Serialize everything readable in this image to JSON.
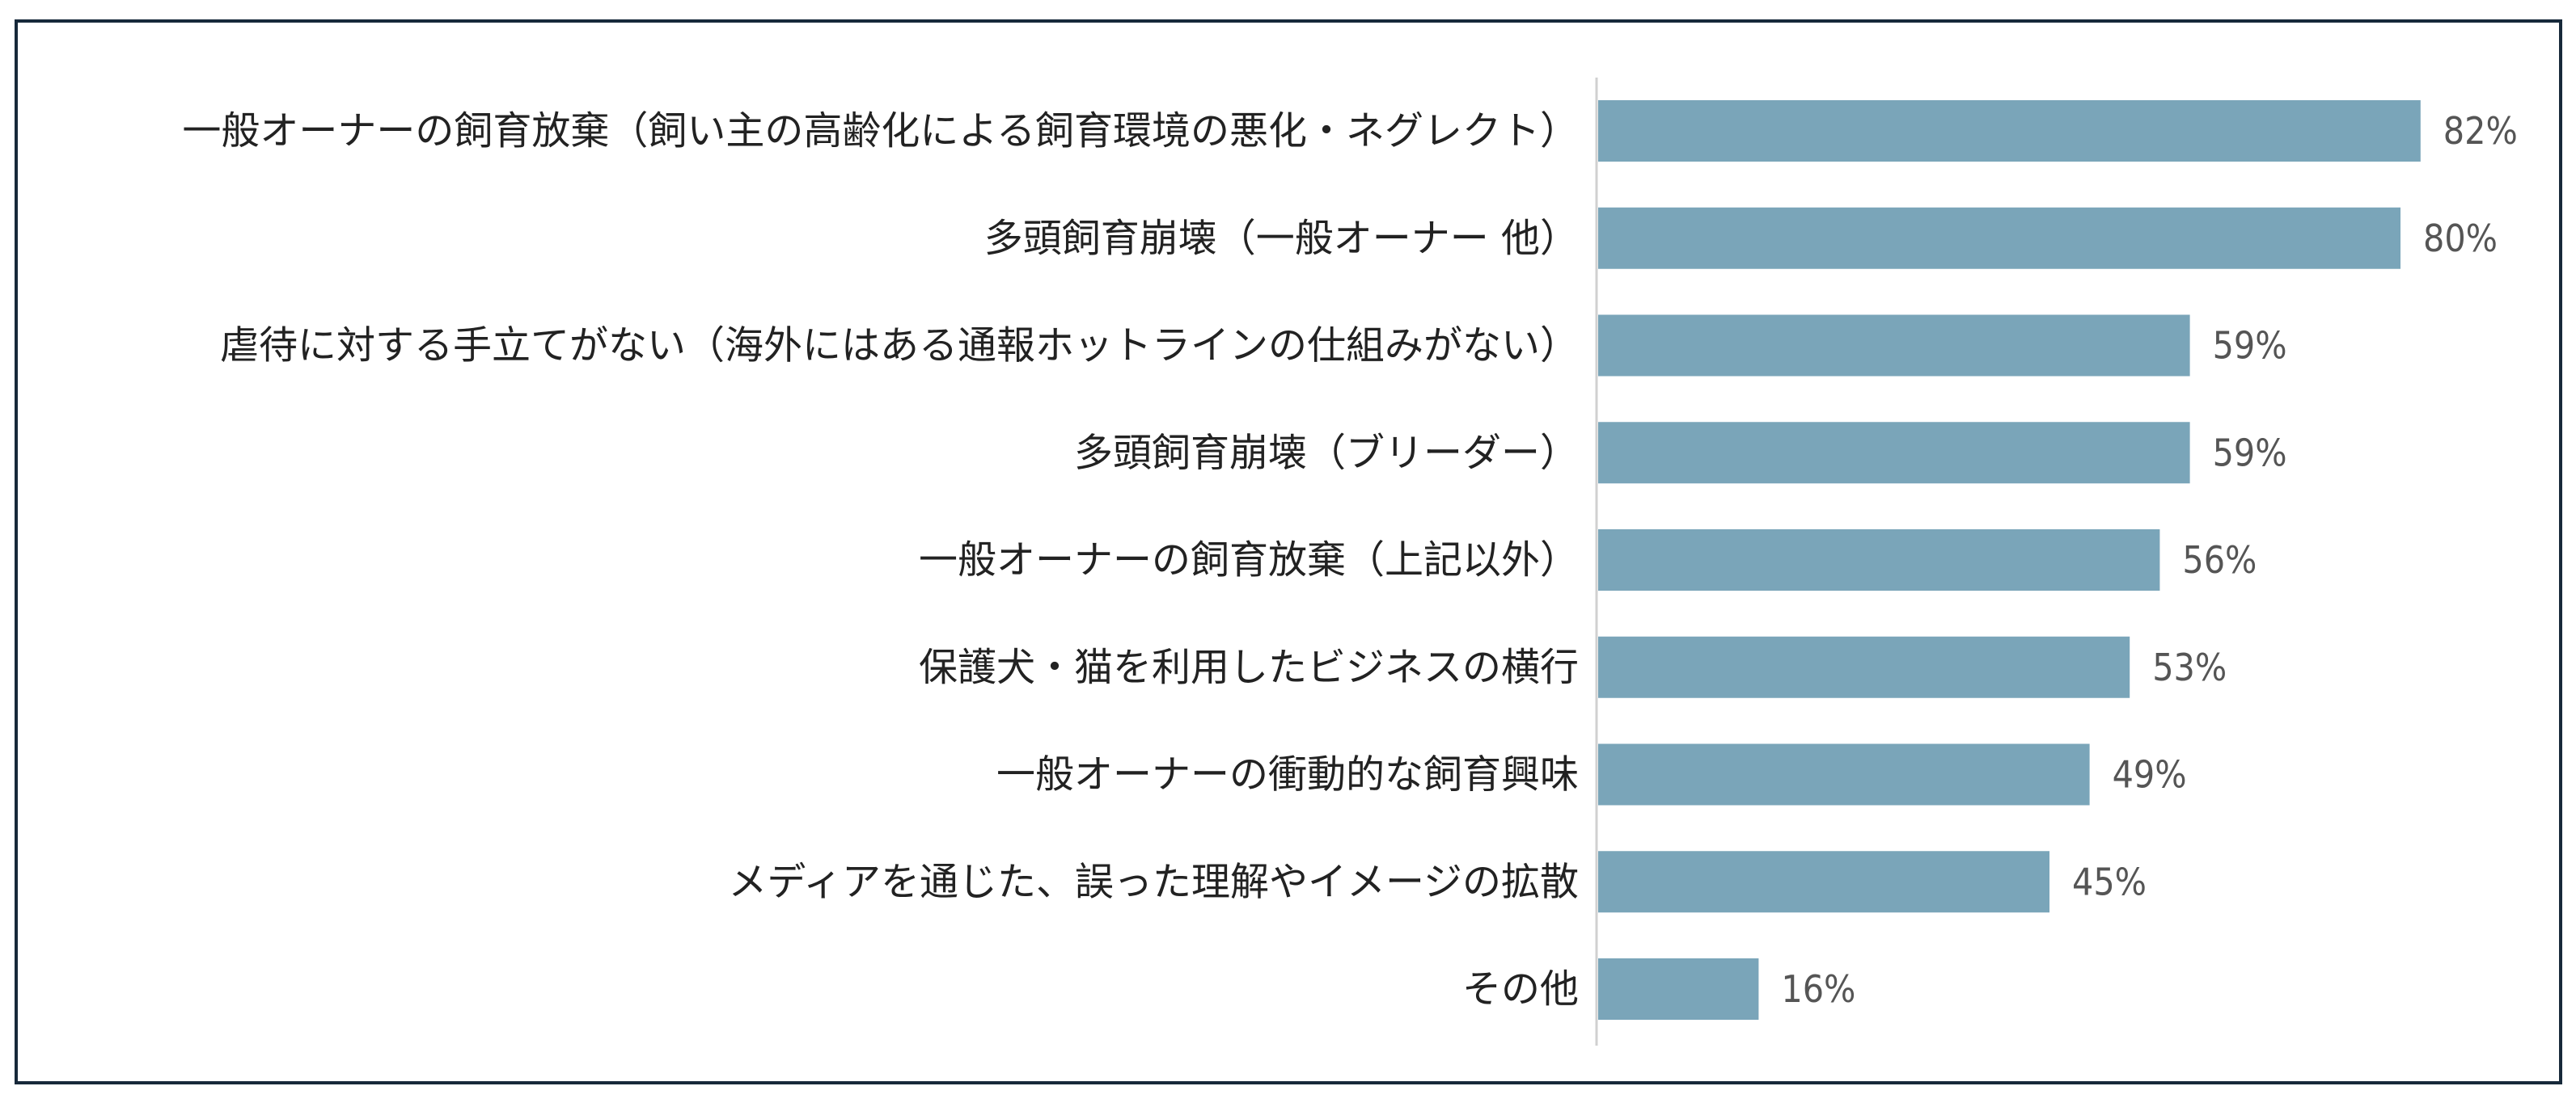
{
  "chart_data": {
    "type": "bar",
    "orientation": "horizontal",
    "categories": [
      "一般オーナーの飼育放棄（飼い主の高齢化による飼育環境の悪化・ネグレクト）",
      "多頭飼育崩壊（一般オーナー 他）",
      "虐待に対する手立てがない（海外にはある通報ホットラインの仕組みがない）",
      "多頭飼育崩壊（ブリーダー）",
      "一般オーナーの飼育放棄（上記以外）",
      "保護犬・猫を利用したビジネスの横行",
      "一般オーナーの衝動的な飼育興味",
      "メディアを通じた、誤った理解やイメージの拡散",
      "その他"
    ],
    "values": [
      82,
      80,
      59,
      59,
      56,
      53,
      49,
      45,
      16
    ],
    "value_labels": [
      "82%",
      "80%",
      "59%",
      "59%",
      "56%",
      "53%",
      "49%",
      "45%",
      "16%"
    ],
    "unit": "%",
    "xlim": [
      0,
      100
    ],
    "bar_color": "#7aa5b9",
    "axis_color": "#d0d0d0",
    "frame_color": "#17293a",
    "grid": false,
    "legend": "none"
  }
}
